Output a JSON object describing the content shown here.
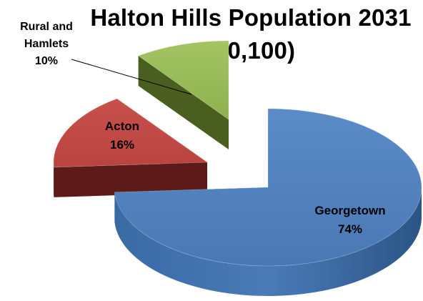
{
  "chart_data": {
    "type": "pie",
    "title": "Halton Hills Population 2031",
    "subtitle": "(90,100)",
    "slices": [
      {
        "label": "Georgetown",
        "value": 74,
        "value_label": "74%",
        "color": "#4F81BD",
        "side_color": "#2F5A8E",
        "exploded": false
      },
      {
        "label": "Acton",
        "value": 16,
        "value_label": "16%",
        "color": "#C0504D",
        "side_color": "#5E1A18",
        "exploded": true
      },
      {
        "label": "Rural and Hamlets",
        "value": 10,
        "value_label": "10%",
        "color": "#9BBB59",
        "side_color": "#4A5E1F",
        "exploded": true
      }
    ],
    "legend": "none",
    "style": "3d-exploded-pie"
  },
  "labels": {
    "rural_line1": "Rural and",
    "rural_line2": "Hamlets",
    "rural_pct": "10%"
  }
}
